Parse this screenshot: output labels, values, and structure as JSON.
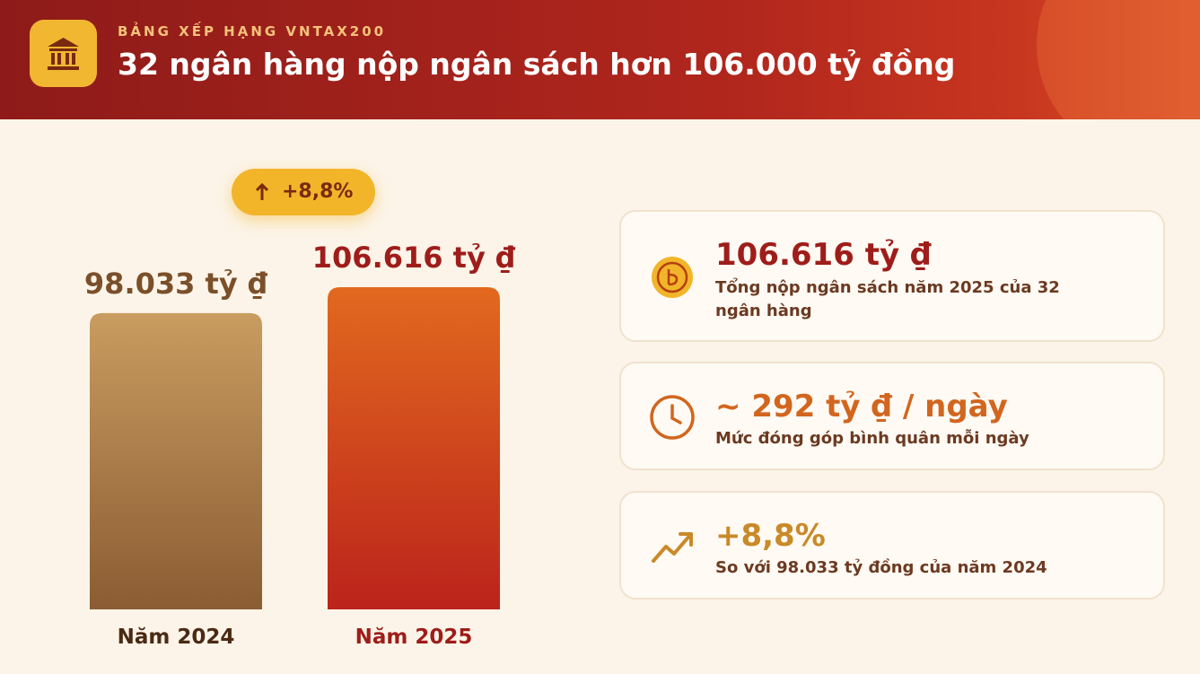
{
  "header": {
    "kicker": "BẢNG XẾP HẠNG VNTAX200",
    "title": "32 ngân hàng nộp ngân sách hơn 106.000 tỷ đồng"
  },
  "chart_data": {
    "type": "bar",
    "categories": [
      "Năm 2024",
      "Năm 2025"
    ],
    "values": [
      98033,
      106616
    ],
    "value_labels": [
      "98.033 tỷ ₫",
      "106.616 tỷ ₫"
    ],
    "colors": [
      [
        "#c99c60",
        "#8b5c33"
      ],
      [
        "#e2691f",
        "#bb231b"
      ]
    ],
    "label_colors": [
      "#7a4f2a",
      "#9e1d1a"
    ],
    "annotation": "+8,8%"
  },
  "cards": [
    {
      "value": "106.616 tỷ ₫",
      "text": "Tổng nộp ngân sách năm 2025 của 32 ngân hàng"
    },
    {
      "value": "~ 292 tỷ ₫ / ngày",
      "text": "Mức đóng góp bình quân mỗi ngày"
    },
    {
      "value": "+8,8%",
      "text": "So với 98.033 tỷ đồng của năm 2024"
    }
  ]
}
